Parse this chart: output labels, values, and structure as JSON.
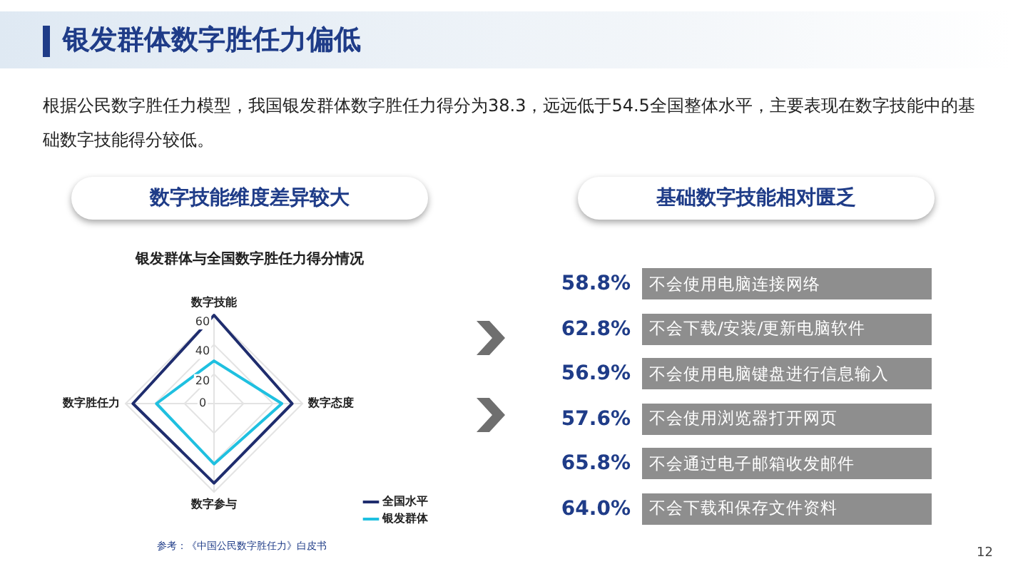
{
  "chart_data": [
    {
      "type": "other",
      "title": "银发群体数字胜任力偏低",
      "subtitle": "根据公民数字胜任力模型，我国银发群体数字胜任力得分为38.3，远远低于54.5全国整体水平，主要表现在数字技能中的基础数字技能得分较低。",
      "annotations": [
        "12"
      ]
    },
    {
      "type": "radar",
      "title": "数字技能维度差异较大",
      "subtitle": "银发群体与全国数字胜任力得分情况",
      "categories": [
        "数字技能",
        "数字态度",
        "数字参与",
        "数字胜任力"
      ],
      "ylim": [
        0,
        60
      ],
      "yticks": [
        0,
        20,
        40,
        60
      ],
      "grid": true,
      "legend": "bottom right",
      "annotations": [
        "参考：《中国公民数字胜任力》白皮书"
      ],
      "series": [
        {
          "name": "全国水平",
          "color": "#1f2d6e",
          "values": [
            60,
            53,
            54,
            55
          ]
        },
        {
          "name": "银发群体",
          "color": "#1fc0e0",
          "values": [
            29,
            46,
            41,
            39
          ]
        }
      ]
    },
    {
      "type": "other",
      "title": "基础数字技能相对匮乏",
      "categories": [
        "不会使用电脑连接网络",
        "不会下载/安装/更新电脑软件",
        "不会使用电脑键盘进行信息输入",
        "不会使用浏览器打开网页",
        "不会通过电子邮箱收发邮件",
        "不会下载和保存文件资料"
      ],
      "value_labels": [
        "58.8%",
        "62.8%",
        "56.9%",
        "57.6%",
        "65.8%",
        "64.0%"
      ]
    }
  ]
}
